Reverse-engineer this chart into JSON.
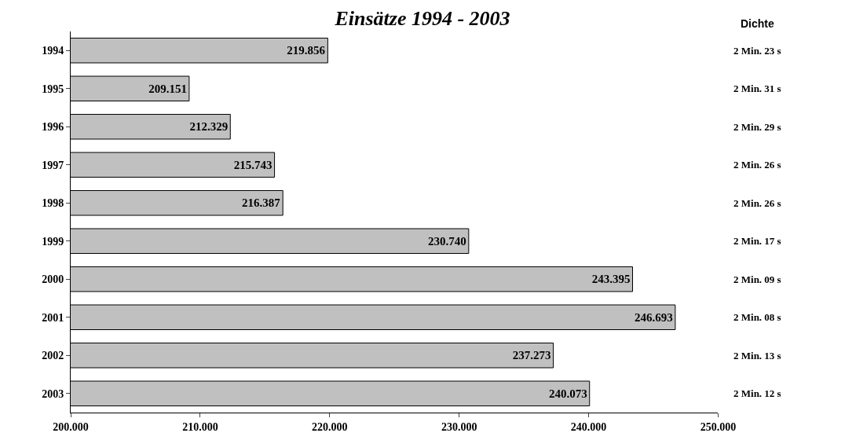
{
  "chart_data": {
    "type": "bar",
    "orientation": "horizontal",
    "title": "Einsätze 1994 - 2003",
    "categories": [
      "1994",
      "1995",
      "1996",
      "1997",
      "1998",
      "1999",
      "2000",
      "2001",
      "2002",
      "2003"
    ],
    "values": [
      219856,
      209151,
      212329,
      215743,
      216387,
      230740,
      243395,
      246693,
      237273,
      240073
    ],
    "value_labels": [
      "219.856",
      "209.151",
      "212.329",
      "215.743",
      "216.387",
      "230.740",
      "243.395",
      "246.693",
      "237.273",
      "240.073"
    ],
    "color": "#c0c0c0",
    "xlim": [
      200000,
      250000
    ],
    "xticks": [
      {
        "value": 200000,
        "label": "200.000"
      },
      {
        "value": 210000,
        "label": "210.000"
      },
      {
        "value": 220000,
        "label": "220.000"
      },
      {
        "value": 230000,
        "label": "230.000"
      },
      {
        "value": 240000,
        "label": "240.000"
      },
      {
        "value": 250000,
        "label": "250.000"
      }
    ],
    "legend": false,
    "annotations": [
      "Dichte",
      "2 Min. 23 s",
      "2 Min. 31 s",
      "2 Min. 29 s",
      "2 Min. 26 s",
      "2 Min. 26 s",
      "2 Min. 17 s",
      "2 Min. 09 s",
      "2 Min. 08 s",
      "2 Min. 13 s",
      "2 Min. 12 s"
    ]
  }
}
